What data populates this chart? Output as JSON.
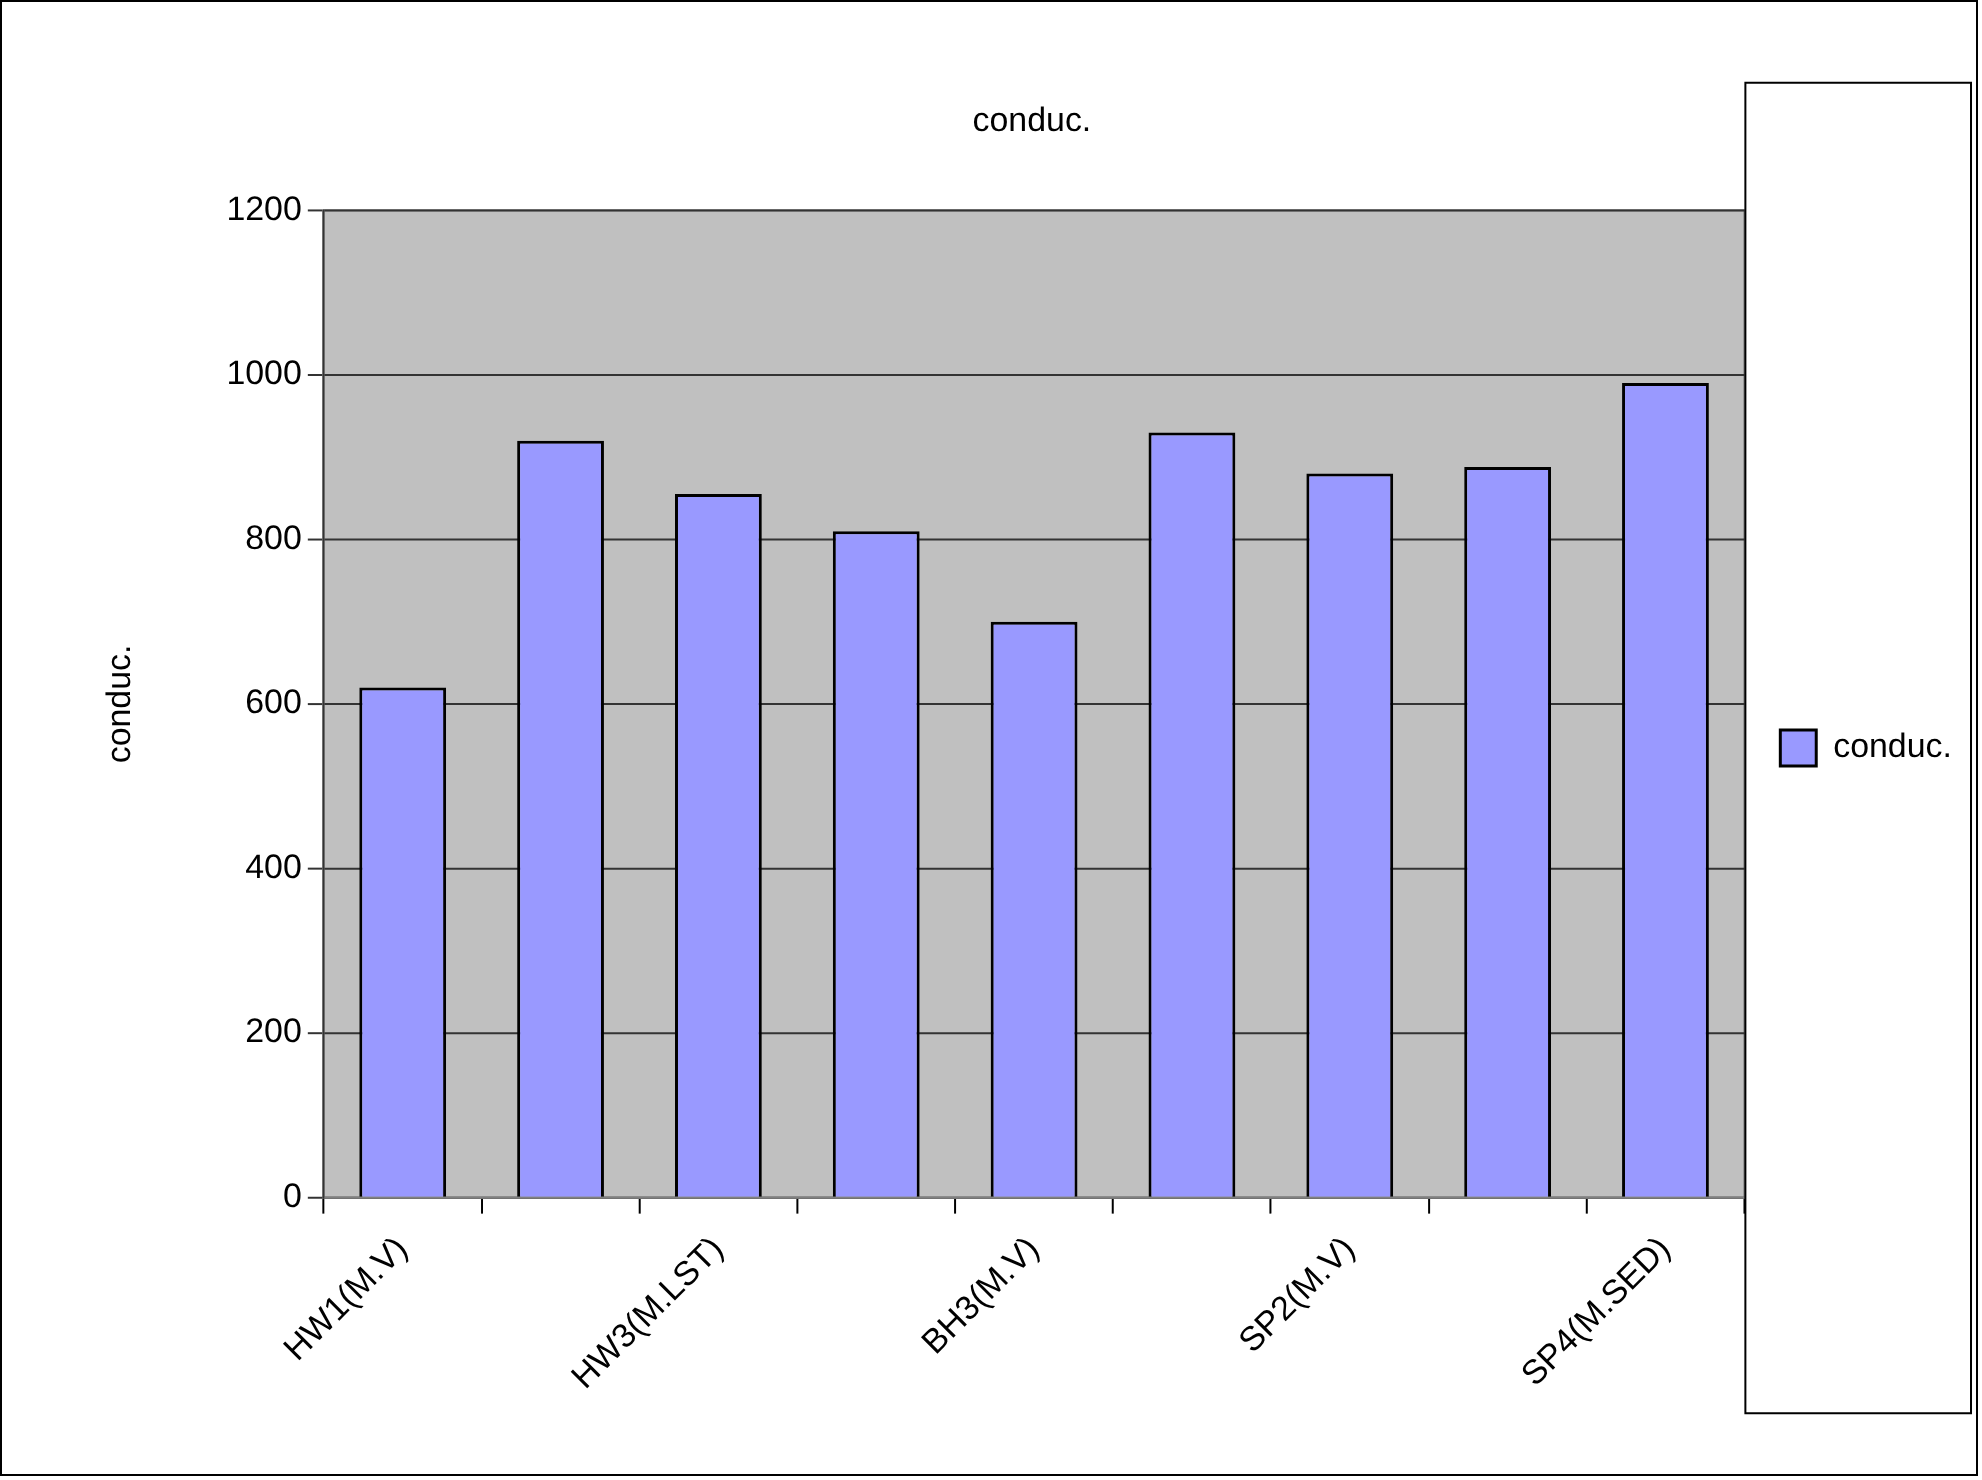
{
  "chart_data": {
    "type": "bar",
    "title": "conduc.",
    "ylabel": "conduc.",
    "categories": [
      "HW1(M.V)",
      null,
      "HW3(M.LST)",
      null,
      "BH3(M.V)",
      null,
      "SP2(M.V)",
      null,
      "SP4(M.SED)"
    ],
    "series": [
      {
        "name": "conduc.",
        "color": "#9999ff",
        "values": [
          620,
          920,
          855,
          810,
          700,
          930,
          880,
          888,
          990
        ]
      }
    ],
    "ylim": [
      0,
      1200
    ],
    "yticks": [
      0,
      200,
      400,
      600,
      800,
      1000,
      1200
    ],
    "grid": "y",
    "legend": "right"
  }
}
